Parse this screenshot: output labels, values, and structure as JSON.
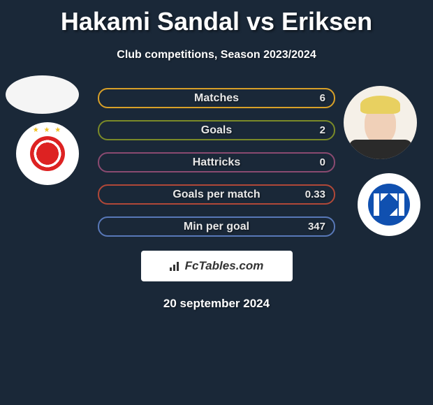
{
  "title": "Hakami Sandal vs Eriksen",
  "subtitle": "Club competitions, Season 2023/2024",
  "date": "20 september 2024",
  "branding": "FcTables.com",
  "colors": {
    "background": "#1a2838",
    "text": "#ffffff",
    "row_border_1": "#d8a028",
    "row_border_2": "#7a8a28",
    "row_border_3": "#8a4a70",
    "row_border_4": "#b04838",
    "row_border_5": "#5878b8",
    "branding_bg": "#ffffff"
  },
  "stats": [
    {
      "label": "Matches",
      "right_value": "6",
      "border_color": "#d8a028"
    },
    {
      "label": "Goals",
      "right_value": "2",
      "border_color": "#7a8a28"
    },
    {
      "label": "Hattricks",
      "right_value": "0",
      "border_color": "#8a4a70"
    },
    {
      "label": "Goals per match",
      "right_value": "0.33",
      "border_color": "#b04838"
    },
    {
      "label": "Min per goal",
      "right_value": "347",
      "border_color": "#5878b8"
    }
  ],
  "left_side": {
    "player_avatar_shape": "ellipse",
    "crest_name": "cska-crest",
    "crest_primary": "#d22222",
    "crest_bg": "#ffffff"
  },
  "right_side": {
    "player_avatar_shape": "circle",
    "crest_name": "molde-crest",
    "crest_primary": "#1050b0",
    "crest_bg": "#ffffff",
    "crest_letter": "M"
  },
  "chart_type": "comparison-bars-infographic",
  "layout": {
    "title_fontsize": 36,
    "subtitle_fontsize": 16,
    "stat_label_fontsize": 16,
    "stat_value_fontsize": 15,
    "date_fontsize": 17,
    "pill_height": 29,
    "pill_radius": 14,
    "pill_border_width": 2,
    "row_gap": 17
  }
}
